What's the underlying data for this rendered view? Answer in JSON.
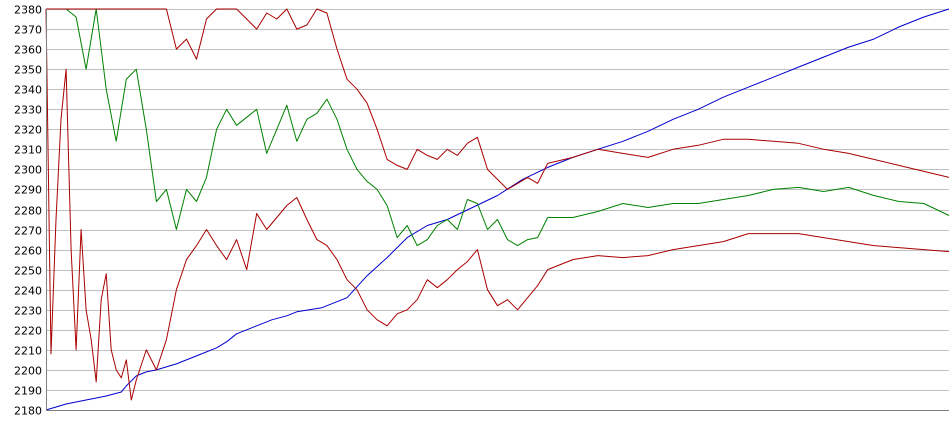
{
  "chart_data": {
    "type": "line",
    "title": "",
    "xlabel": "",
    "ylabel": "",
    "ylim": [
      2180,
      2380
    ],
    "yticks": [
      2180,
      2190,
      2200,
      2210,
      2220,
      2230,
      2240,
      2250,
      2260,
      2270,
      2280,
      2290,
      2300,
      2310,
      2320,
      2330,
      2340,
      2350,
      2360,
      2370,
      2380
    ],
    "xlim": [
      0,
      180
    ],
    "grid": true,
    "legend": "none",
    "colors": {
      "blue": "#0000cc",
      "green": "#008000",
      "red": "#aa0000",
      "grid": "#c0c0c0"
    },
    "series": [
      {
        "color": "#0000cc",
        "x": [
          0,
          4,
          8,
          12,
          15,
          16,
          18,
          20,
          22,
          26,
          30,
          34,
          36,
          38,
          40,
          42,
          45,
          48,
          50,
          55,
          60,
          64,
          68,
          72,
          76,
          80,
          85,
          90,
          95,
          100,
          105,
          110,
          115,
          120,
          125,
          130,
          135,
          140,
          145,
          150,
          155,
          160,
          165,
          170,
          175,
          180
        ],
        "y": [
          2180,
          2183,
          2185,
          2187,
          2189,
          2192,
          2197,
          2199,
          2200,
          2203,
          2207,
          2211,
          2214,
          2218,
          2220,
          2222,
          2225,
          2227,
          2229,
          2231,
          2236,
          2247,
          2256,
          2266,
          2272,
          2275,
          2281,
          2287,
          2295,
          2301,
          2306,
          2310,
          2314,
          2319,
          2325,
          2330,
          2336,
          2341,
          2346,
          2351,
          2356,
          2361,
          2365,
          2371,
          2376,
          2380
        ]
      },
      {
        "color": "#008000",
        "x": [
          0,
          2,
          4,
          6,
          8,
          10,
          12,
          14,
          16,
          18,
          20,
          22,
          24,
          26,
          28,
          30,
          32,
          34,
          36,
          38,
          40,
          42,
          44,
          46,
          48,
          50,
          52,
          54,
          56,
          58,
          60,
          62,
          64,
          66,
          68,
          70,
          72,
          74,
          76,
          78,
          80,
          82,
          84,
          86,
          88,
          90,
          92,
          94,
          96,
          98,
          100,
          105,
          110,
          115,
          120,
          125,
          130,
          135,
          140,
          145,
          150,
          155,
          160,
          165,
          170,
          175,
          180
        ],
        "y": [
          2380,
          2380,
          2380,
          2376,
          2350,
          2380,
          2340,
          2314,
          2345,
          2350,
          2320,
          2284,
          2290,
          2270,
          2290,
          2284,
          2296,
          2320,
          2330,
          2322,
          2326,
          2330,
          2308,
          2320,
          2332,
          2314,
          2325,
          2328,
          2335,
          2325,
          2310,
          2300,
          2294,
          2290,
          2282,
          2266,
          2272,
          2262,
          2265,
          2272,
          2275,
          2270,
          2285,
          2283,
          2270,
          2275,
          2265,
          2262,
          2265,
          2266,
          2276,
          2276,
          2279,
          2283,
          2281,
          2283,
          2283,
          2285,
          2287,
          2290,
          2291,
          2289,
          2291,
          2287,
          2284,
          2283,
          2277
        ]
      },
      {
        "color": "#aa0000",
        "x": [
          0,
          2,
          4,
          6,
          8,
          10,
          12,
          14,
          16,
          18,
          20,
          22,
          24,
          26,
          28,
          30,
          32,
          34,
          36,
          38,
          40,
          42,
          44,
          46,
          48,
          50,
          52,
          54,
          56,
          58,
          60,
          62,
          64,
          66,
          68,
          70,
          72,
          74,
          76,
          78,
          80,
          82,
          84,
          86,
          88,
          90,
          92,
          94,
          96,
          98,
          100,
          105,
          110,
          115,
          120,
          125,
          130,
          135,
          140,
          145,
          150,
          155,
          160,
          165,
          170,
          175,
          180
        ],
        "y": [
          2380,
          2380,
          2380,
          2380,
          2380,
          2380,
          2380,
          2380,
          2380,
          2380,
          2380,
          2380,
          2380,
          2360,
          2365,
          2355,
          2375,
          2380,
          2380,
          2380,
          2375,
          2370,
          2378,
          2375,
          2380,
          2370,
          2372,
          2380,
          2378,
          2360,
          2345,
          2340,
          2333,
          2320,
          2305,
          2302,
          2300,
          2310,
          2307,
          2305,
          2310,
          2307,
          2313,
          2316,
          2300,
          2295,
          2290,
          2293,
          2296,
          2293,
          2303,
          2306,
          2310,
          2308,
          2306,
          2310,
          2312,
          2315,
          2315,
          2314,
          2313,
          2310,
          2308,
          2305,
          2302,
          2299,
          2296
        ]
      },
      {
        "color": "#aa0000",
        "x": [
          0,
          1,
          2,
          3,
          4,
          5,
          6,
          7,
          8,
          9,
          10,
          11,
          12,
          13,
          14,
          15,
          16,
          17,
          18,
          20,
          22,
          24,
          26,
          28,
          30,
          32,
          34,
          36,
          38,
          40,
          42,
          44,
          46,
          48,
          50,
          52,
          54,
          56,
          58,
          60,
          62,
          64,
          66,
          68,
          70,
          72,
          74,
          76,
          78,
          80,
          82,
          84,
          86,
          88,
          90,
          92,
          94,
          96,
          98,
          100,
          105,
          110,
          115,
          120,
          125,
          130,
          135,
          140,
          145,
          150,
          155,
          160,
          165,
          170,
          175,
          180
        ],
        "y": [
          2380,
          2208,
          2275,
          2325,
          2350,
          2260,
          2210,
          2270,
          2230,
          2215,
          2194,
          2235,
          2248,
          2210,
          2200,
          2196,
          2205,
          2185,
          2195,
          2210,
          2200,
          2215,
          2240,
          2255,
          2262,
          2270,
          2262,
          2255,
          2265,
          2250,
          2278,
          2270,
          2276,
          2282,
          2286,
          2275,
          2265,
          2262,
          2255,
          2245,
          2240,
          2230,
          2225,
          2222,
          2228,
          2230,
          2235,
          2245,
          2241,
          2245,
          2250,
          2254,
          2260,
          2240,
          2232,
          2235,
          2230,
          2236,
          2242,
          2250,
          2255,
          2257,
          2256,
          2257,
          2260,
          2262,
          2264,
          2268,
          2268,
          2268,
          2266,
          2264,
          2262,
          2261,
          2260,
          2259
        ]
      }
    ]
  }
}
